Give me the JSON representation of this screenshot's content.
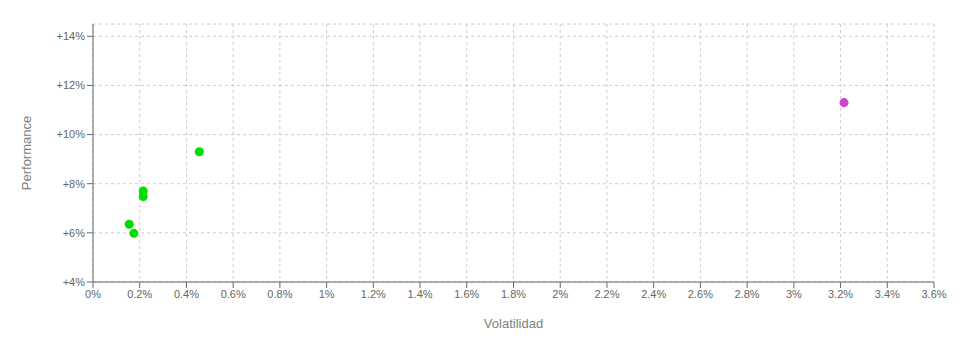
{
  "chart_data": {
    "type": "scatter",
    "xlabel": "Volatilidad",
    "ylabel": "Performance",
    "xlim": [
      0,
      0.036
    ],
    "ylim": [
      0.04,
      0.145
    ],
    "xticks": [
      {
        "value": 0,
        "label": "0%"
      },
      {
        "value": 0.002,
        "label": "0.2%"
      },
      {
        "value": 0.004,
        "label": "0.4%"
      },
      {
        "value": 0.006,
        "label": "0.6%"
      },
      {
        "value": 0.008,
        "label": "0.8%"
      },
      {
        "value": 0.01,
        "label": "1%"
      },
      {
        "value": 0.012,
        "label": "1.2%"
      },
      {
        "value": 0.014,
        "label": "1.4%"
      },
      {
        "value": 0.016,
        "label": "1.6%"
      },
      {
        "value": 0.018,
        "label": "1.8%"
      },
      {
        "value": 0.02,
        "label": "2%"
      },
      {
        "value": 0.022,
        "label": "2.2%"
      },
      {
        "value": 0.024,
        "label": "2.4%"
      },
      {
        "value": 0.026,
        "label": "2.6%"
      },
      {
        "value": 0.028,
        "label": "2.8%"
      },
      {
        "value": 0.03,
        "label": "3%"
      },
      {
        "value": 0.032,
        "label": "3.2%"
      },
      {
        "value": 0.034,
        "label": "3.4%"
      },
      {
        "value": 0.036,
        "label": "3.6%"
      }
    ],
    "yticks": [
      {
        "value": 0.04,
        "label": "+4%"
      },
      {
        "value": 0.06,
        "label": "+6%"
      },
      {
        "value": 0.08,
        "label": "+8%"
      },
      {
        "value": 0.1,
        "label": "+10%"
      },
      {
        "value": 0.12,
        "label": "+12%"
      },
      {
        "value": 0.14,
        "label": "+14%"
      }
    ],
    "grid": true,
    "series": [
      {
        "color": "#00dd00",
        "x": [
          0.00155,
          0.00175,
          0.00215,
          0.00215,
          0.00455
        ],
        "values": [
          0.0635,
          0.0598,
          0.077,
          0.0748,
          0.093
        ]
      },
      {
        "color": "#cc44cc",
        "x": [
          0.03215
        ],
        "values": [
          0.113
        ]
      }
    ]
  }
}
